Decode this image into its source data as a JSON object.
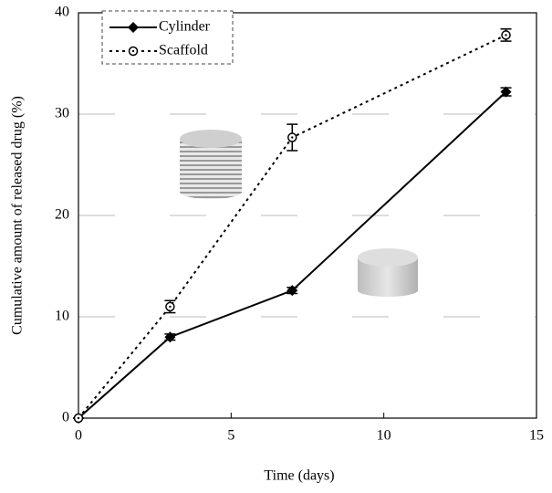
{
  "chart_data": {
    "type": "line",
    "x_label": "Time (days)",
    "y_label": "Cumulative amount of released drug (%)",
    "series": [
      {
        "name": "Cylinder",
        "color": "#000000",
        "marker": "diamond",
        "dash": "solid",
        "x": [
          0,
          3,
          7,
          14
        ],
        "values": [
          0,
          8,
          12.6,
          32.2
        ],
        "errors": [
          0,
          0.3,
          0.3,
          0.4
        ]
      },
      {
        "name": "Scaffold",
        "color": "#000000",
        "marker": "circle",
        "dash": "dotted",
        "x": [
          0,
          3,
          7,
          14
        ],
        "values": [
          0,
          11,
          27.7,
          37.8
        ],
        "errors": [
          0,
          0.6,
          1.3,
          0.6
        ]
      }
    ],
    "xlim": [
      0,
      15
    ],
    "xticks": [
      0,
      5,
      10,
      15
    ],
    "ylim": [
      0,
      40
    ],
    "yticks": [
      0,
      10,
      20,
      30,
      40
    ],
    "grid": true,
    "legend": "upper-left"
  }
}
